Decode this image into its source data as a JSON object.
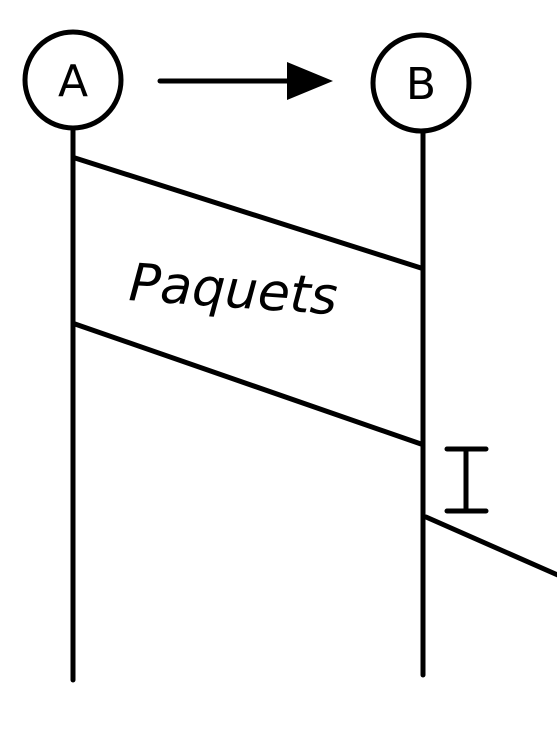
{
  "nodes": {
    "a": {
      "label": "A"
    },
    "b": {
      "label": "B"
    }
  },
  "packets": {
    "label": "Paquets"
  },
  "stroke_color": "#000000",
  "background_color": "#ffffff",
  "cursor_glyph": "I"
}
